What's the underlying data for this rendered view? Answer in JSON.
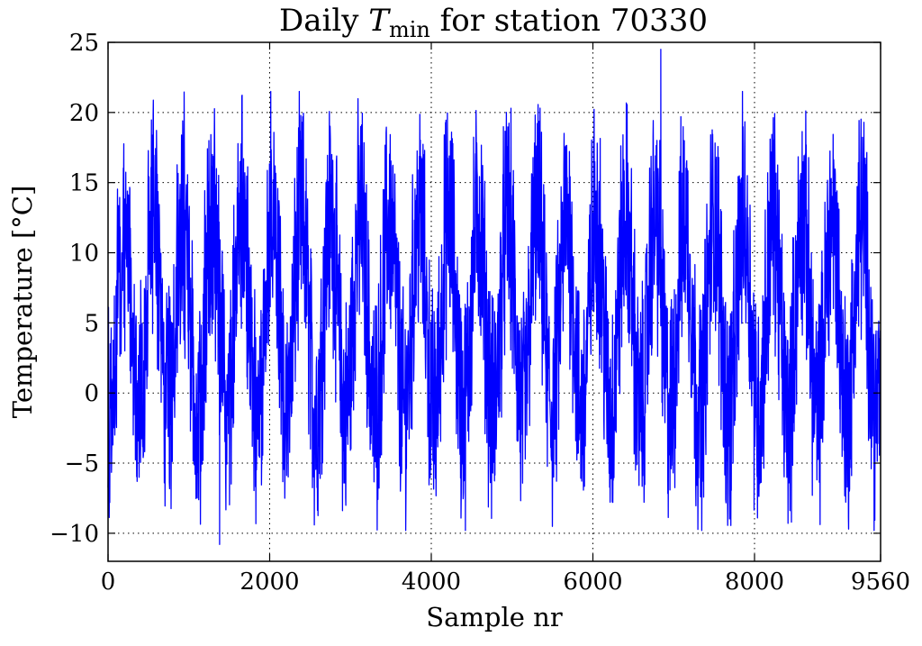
{
  "chart_data": {
    "type": "line",
    "title_prefix": "Daily ",
    "title_var": "T",
    "title_sub": "min",
    "title_suffix": " for station 70330",
    "xlabel": "Sample nr",
    "ylabel": "Temperature [°C]",
    "xlim": [
      0,
      9560
    ],
    "ylim": [
      -12,
      25
    ],
    "xticks": [
      0,
      2000,
      4000,
      6000,
      8000,
      9560
    ],
    "xtick_labels": [
      "0",
      "2000",
      "4000",
      "6000",
      "8000",
      "9560"
    ],
    "yticks": [
      -10,
      -5,
      0,
      5,
      10,
      15,
      20,
      25
    ],
    "ytick_labels": [
      "−10",
      "−5",
      "0",
      "5",
      "10",
      "15",
      "20",
      "25"
    ],
    "grid": true,
    "series": [
      {
        "color": "#0000ff",
        "description": "daily minimum temperature, annual cycle with 26 peaks",
        "annual_cycle": {
          "period_samples": 365,
          "peak_sample": 200,
          "annual_mean": 5.5,
          "amplitude": 7.0
        },
        "x_start": 0,
        "x_end": 9560,
        "y_max": 24.5,
        "y_max_at": 6840,
        "y_min": -10.8,
        "y_min_at": 1380
      }
    ]
  }
}
